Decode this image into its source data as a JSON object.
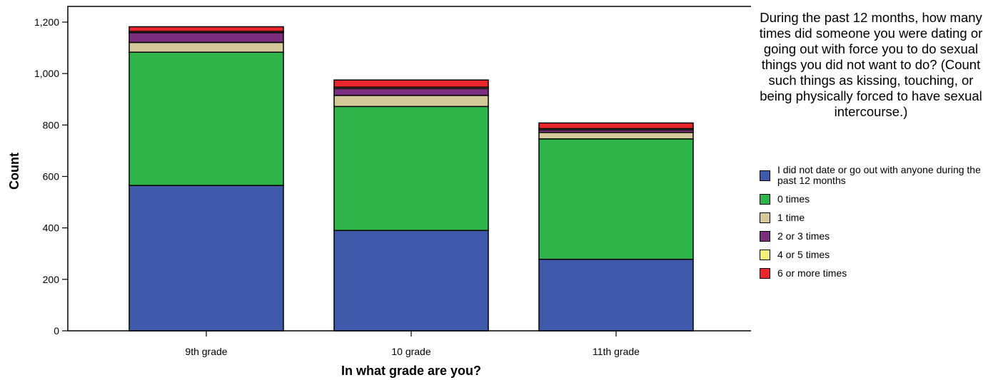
{
  "chart_data": {
    "type": "bar",
    "stacked": true,
    "title": "During the past 12 months, how many times did someone you were dating or going out with force you to do sexual things you did not want to do? (Count such things as kissing, touching, or being physically forced to have sexual intercourse.)",
    "xlabel": "In what grade are you?",
    "ylabel": "Count",
    "ylim": [
      0,
      1200
    ],
    "yticks": [
      0,
      200,
      400,
      600,
      800,
      1000,
      1200
    ],
    "ytick_labels": [
      "0",
      "200",
      "400",
      "600",
      "800",
      "1,000",
      "1,200"
    ],
    "grid": false,
    "legend_position": "right",
    "categories": [
      "9th grade",
      "10 grade",
      "11th grade"
    ],
    "series": [
      {
        "name": "I did not date or go out with anyone during the past 12 months",
        "color": "#3f5aab",
        "values": [
          565,
          390,
          278
        ]
      },
      {
        "name": "0 times",
        "color": "#2fb44a",
        "values": [
          518,
          482,
          468
        ]
      },
      {
        "name": "1 time",
        "color": "#d4c99a",
        "values": [
          38,
          43,
          25
        ]
      },
      {
        "name": "2 or 3 times",
        "color": "#7b2d7e",
        "values": [
          38,
          27,
          10
        ]
      },
      {
        "name": "4 or 5 times",
        "color": "#f5f07a",
        "values": [
          5,
          5,
          5
        ]
      },
      {
        "name": "6 or more times",
        "color": "#e8262b",
        "values": [
          18,
          28,
          22
        ]
      }
    ]
  },
  "legend": {
    "items": [
      {
        "label": "I did not date or go out with anyone during the past 12 months",
        "color": "#3f5aab"
      },
      {
        "label": "0 times",
        "color": "#2fb44a"
      },
      {
        "label": "1 time",
        "color": "#d4c99a"
      },
      {
        "label": "2 or 3 times",
        "color": "#7b2d7e"
      },
      {
        "label": "4 or 5 times",
        "color": "#f5f07a"
      },
      {
        "label": "6 or more times",
        "color": "#e8262b"
      }
    ]
  }
}
